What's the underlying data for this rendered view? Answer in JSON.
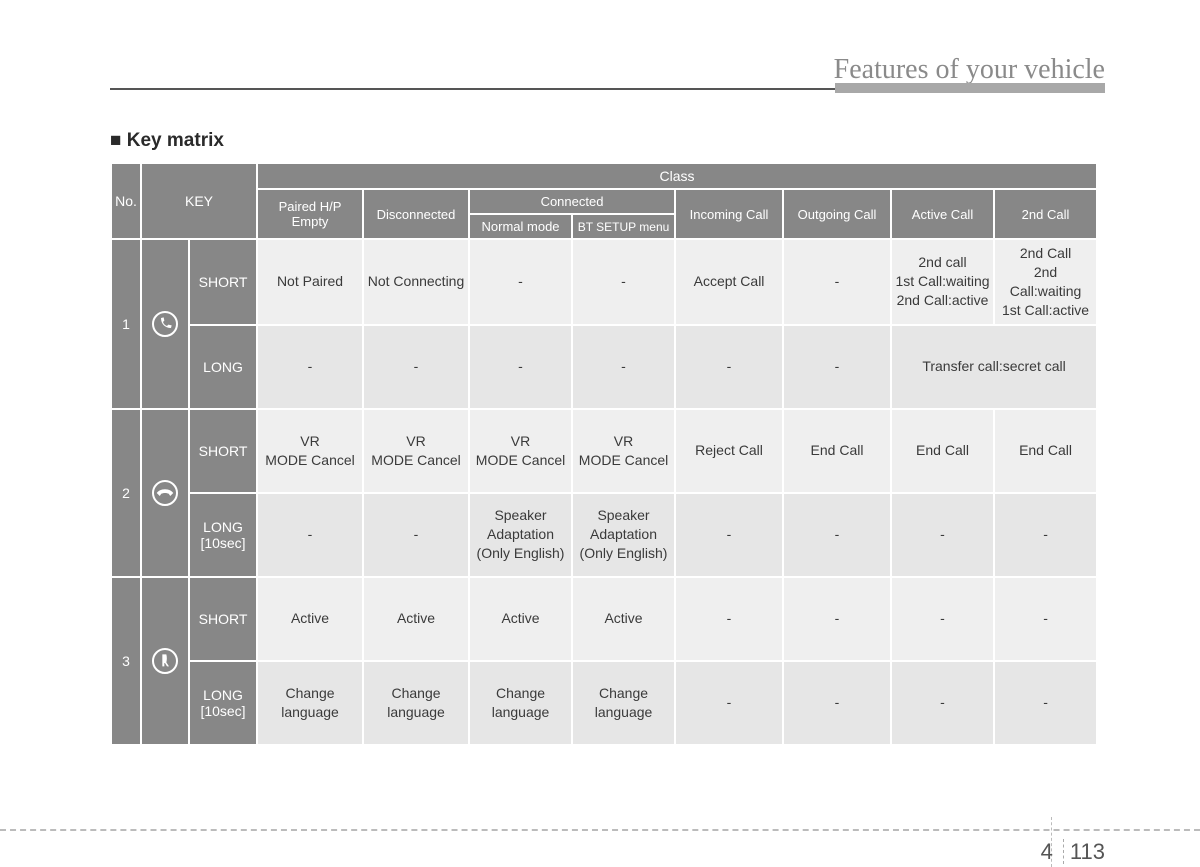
{
  "header": {
    "title": "Features of your vehicle"
  },
  "section_title": "Key matrix",
  "table": {
    "head": {
      "no": "No.",
      "key": "KEY",
      "class": "Class",
      "paired": "Paired H/P\nEmpty",
      "disconnected": "Disconnected",
      "connected": "Connected",
      "normal": "Normal mode",
      "btsetup": "BT SETUP menu",
      "incoming": "Incoming Call",
      "outgoing": "Outgoing Call",
      "active": "Active Call",
      "secondcall": "2nd Call"
    },
    "rows": [
      {
        "no": "1",
        "icon": "phone-pickup",
        "press": [
          {
            "label": "SHORT",
            "cells": [
              "Not Paired",
              "Not Connecting",
              "-",
              "-",
              "Accept Call",
              "-",
              "2nd call\n1st Call:waiting\n2nd Call:active",
              "2nd Call\n2nd Call:waiting\n1st Call:active"
            ],
            "merge_last_two": false
          },
          {
            "label": "LONG",
            "cells": [
              "-",
              "-",
              "-",
              "-",
              "-",
              "-",
              "Transfer call:secret call"
            ],
            "merge_last_two": true
          }
        ]
      },
      {
        "no": "2",
        "icon": "phone-hangup",
        "press": [
          {
            "label": "SHORT",
            "cells": [
              "VR\nMODE Cancel",
              "VR\nMODE Cancel",
              "VR\nMODE Cancel",
              "VR\nMODE Cancel",
              "Reject Call",
              "End Call",
              "End Call",
              "End Call"
            ],
            "merge_last_two": false
          },
          {
            "label": "LONG\n[10sec]",
            "cells": [
              "-",
              "-",
              "Speaker\nAdaptation\n(Only English)",
              "Speaker\nAdaptation\n(Only English)",
              "-",
              "-",
              "-",
              "-"
            ],
            "merge_last_two": false
          }
        ]
      },
      {
        "no": "3",
        "icon": "voice",
        "press": [
          {
            "label": "SHORT",
            "cells": [
              "Active",
              "Active",
              "Active",
              "Active",
              "-",
              "-",
              "-",
              "-"
            ],
            "merge_last_two": false
          },
          {
            "label": "LONG\n[10sec]",
            "cells": [
              "Change\nlanguage",
              "Change\nlanguage",
              "Change\nlanguage",
              "Change\nlanguage",
              "-",
              "-",
              "-",
              "-"
            ],
            "merge_last_two": false
          }
        ]
      }
    ]
  },
  "footer": {
    "section": "4",
    "page": "113"
  },
  "colors": {
    "header_bg": "#878787",
    "cell_bg": "#efefef",
    "cell_bg_alt": "#e6e6e6",
    "page_bg": "#ffffff",
    "text": "#3a3a3a",
    "title_text": "#8a8a8a"
  }
}
